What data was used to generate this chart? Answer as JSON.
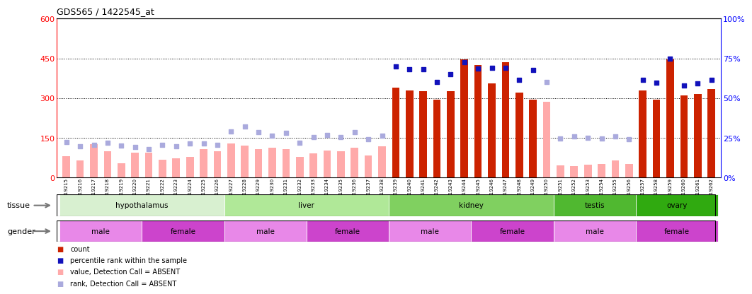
{
  "title": "GDS565 / 1422545_at",
  "samples": [
    "GSM19215",
    "GSM19216",
    "GSM19217",
    "GSM19218",
    "GSM19219",
    "GSM19220",
    "GSM19221",
    "GSM19222",
    "GSM19223",
    "GSM19224",
    "GSM19225",
    "GSM19226",
    "GSM19227",
    "GSM19228",
    "GSM19229",
    "GSM19230",
    "GSM19231",
    "GSM19232",
    "GSM19233",
    "GSM19234",
    "GSM19235",
    "GSM19236",
    "GSM19237",
    "GSM19238",
    "GSM19239",
    "GSM19240",
    "GSM19241",
    "GSM19242",
    "GSM19243",
    "GSM19244",
    "GSM19245",
    "GSM19246",
    "GSM19247",
    "GSM19248",
    "GSM19249",
    "GSM19250",
    "GSM19251",
    "GSM19252",
    "GSM19253",
    "GSM19254",
    "GSM19255",
    "GSM19256",
    "GSM19257",
    "GSM19258",
    "GSM19259",
    "GSM19260",
    "GSM19261",
    "GSM19262"
  ],
  "bar_values": [
    80,
    65,
    125,
    100,
    55,
    95,
    95,
    68,
    72,
    78,
    108,
    98,
    128,
    120,
    108,
    112,
    108,
    78,
    92,
    102,
    98,
    112,
    82,
    118,
    340,
    330,
    325,
    295,
    325,
    445,
    425,
    355,
    435,
    320,
    295,
    285,
    45,
    42,
    48,
    52,
    65,
    50,
    330,
    295,
    445,
    310,
    315,
    335
  ],
  "bar_present": [
    false,
    false,
    false,
    false,
    false,
    false,
    false,
    false,
    false,
    false,
    false,
    false,
    false,
    false,
    false,
    false,
    false,
    false,
    false,
    false,
    false,
    false,
    false,
    false,
    true,
    true,
    true,
    true,
    true,
    true,
    true,
    true,
    true,
    true,
    true,
    false,
    false,
    false,
    false,
    false,
    false,
    false,
    true,
    true,
    true,
    true,
    true,
    true
  ],
  "rank_values_left": [
    135,
    118,
    122,
    130,
    120,
    115,
    108,
    122,
    118,
    128,
    128,
    122,
    175,
    192,
    170,
    158,
    168,
    130,
    152,
    160,
    152,
    170,
    145,
    158,
    420,
    408,
    408,
    360,
    390,
    435,
    412,
    415,
    415,
    370,
    405,
    360,
    148,
    155,
    150,
    148,
    155,
    145,
    370,
    358,
    450,
    348,
    355,
    368
  ],
  "rank_present": [
    false,
    false,
    false,
    false,
    false,
    false,
    false,
    false,
    false,
    false,
    false,
    false,
    false,
    false,
    false,
    false,
    false,
    false,
    false,
    false,
    false,
    false,
    false,
    false,
    true,
    true,
    true,
    true,
    true,
    true,
    true,
    true,
    true,
    true,
    true,
    false,
    false,
    false,
    false,
    false,
    false,
    false,
    true,
    true,
    true,
    true,
    true,
    true
  ],
  "tissue_groups": [
    {
      "label": "hypothalamus",
      "start": 0,
      "end": 11,
      "color": "#d8f0d0"
    },
    {
      "label": "liver",
      "start": 12,
      "end": 23,
      "color": "#b0e898"
    },
    {
      "label": "kidney",
      "start": 24,
      "end": 35,
      "color": "#80d060"
    },
    {
      "label": "testis",
      "start": 36,
      "end": 41,
      "color": "#50b830"
    },
    {
      "label": "ovary",
      "start": 42,
      "end": 47,
      "color": "#30aa10"
    }
  ],
  "gender_groups": [
    {
      "label": "male",
      "start": 0,
      "end": 5,
      "color": "#e888e8"
    },
    {
      "label": "female",
      "start": 6,
      "end": 11,
      "color": "#cc44cc"
    },
    {
      "label": "male",
      "start": 12,
      "end": 17,
      "color": "#e888e8"
    },
    {
      "label": "female",
      "start": 18,
      "end": 23,
      "color": "#cc44cc"
    },
    {
      "label": "male",
      "start": 24,
      "end": 29,
      "color": "#e888e8"
    },
    {
      "label": "female",
      "start": 30,
      "end": 35,
      "color": "#cc44cc"
    },
    {
      "label": "male",
      "start": 36,
      "end": 41,
      "color": "#e888e8"
    },
    {
      "label": "female",
      "start": 42,
      "end": 47,
      "color": "#cc44cc"
    }
  ],
  "ylim_left": [
    0,
    600
  ],
  "ylim_right": [
    0,
    100
  ],
  "yticks_left": [
    0,
    150,
    300,
    450,
    600
  ],
  "yticks_right": [
    0,
    25,
    50,
    75,
    100
  ],
  "grid_lines": [
    150,
    300,
    450
  ],
  "color_bar_present": "#cc2200",
  "color_bar_absent": "#ffaaaa",
  "color_rank_present": "#1111bb",
  "color_rank_absent": "#aaaadd",
  "legend_items": [
    {
      "label": "count",
      "color": "#cc2200"
    },
    {
      "label": "percentile rank within the sample",
      "color": "#1111bb"
    },
    {
      "label": "value, Detection Call = ABSENT",
      "color": "#ffaaaa"
    },
    {
      "label": "rank, Detection Call = ABSENT",
      "color": "#aaaadd"
    }
  ]
}
